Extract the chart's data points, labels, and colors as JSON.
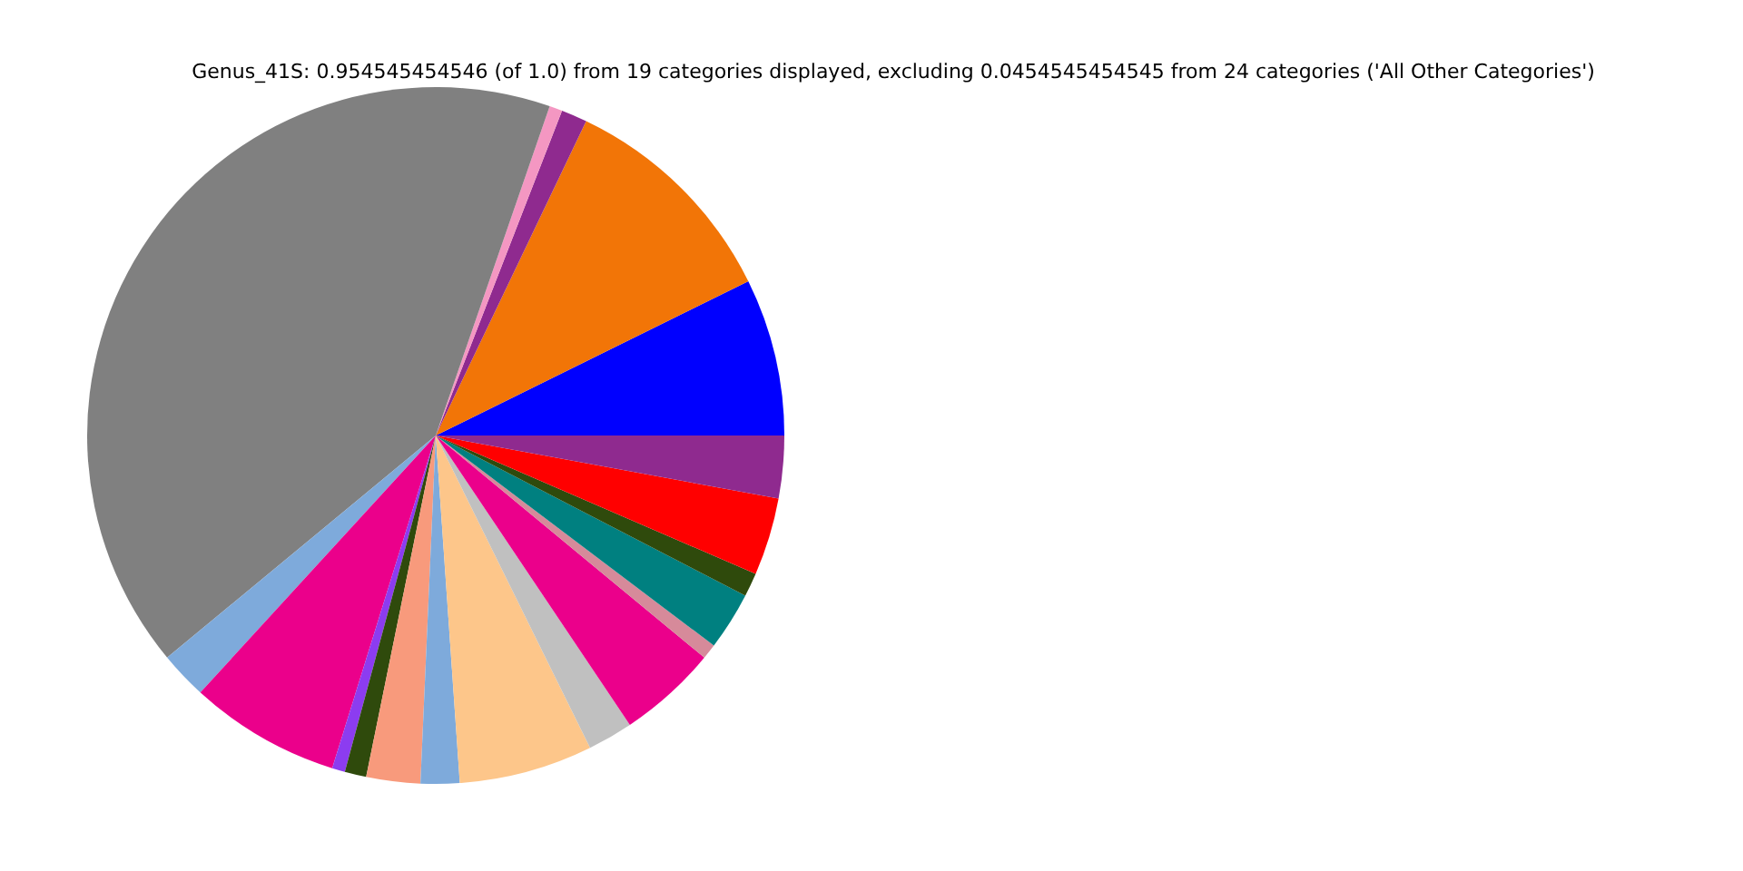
{
  "chart_data": {
    "type": "pie",
    "title": "Genus_41S: 0.954545454546 (of 1.0) from 19 categories displayed, excluding 0.0454545454545 from 24 categories ('All Other Categories')",
    "categories": [
      null,
      null,
      null,
      null,
      null,
      null,
      null,
      null,
      null,
      null,
      null,
      null,
      null,
      null,
      null,
      null,
      null,
      null,
      null
    ],
    "values": [
      7.3,
      10.6,
      1.2,
      0.6,
      41.3,
      2.2,
      7.0,
      0.6,
      1.0,
      2.5,
      1.8,
      6.2,
      2.1,
      4.6,
      0.7,
      2.7,
      1.1,
      3.6,
      2.9
    ],
    "colors": [
      "#0000ff",
      "#f27507",
      "#8f2a8f",
      "#f497c2",
      "#808080",
      "#7eaadb",
      "#eb008b",
      "#8c3cf0",
      "#2f4a0c",
      "#f89a7c",
      "#7eaadb",
      "#fdc68a",
      "#c0c0c0",
      "#eb008b",
      "#d68a9a",
      "#008080",
      "#2f4a0c",
      "#ff0000",
      "#8f2a8f"
    ]
  }
}
